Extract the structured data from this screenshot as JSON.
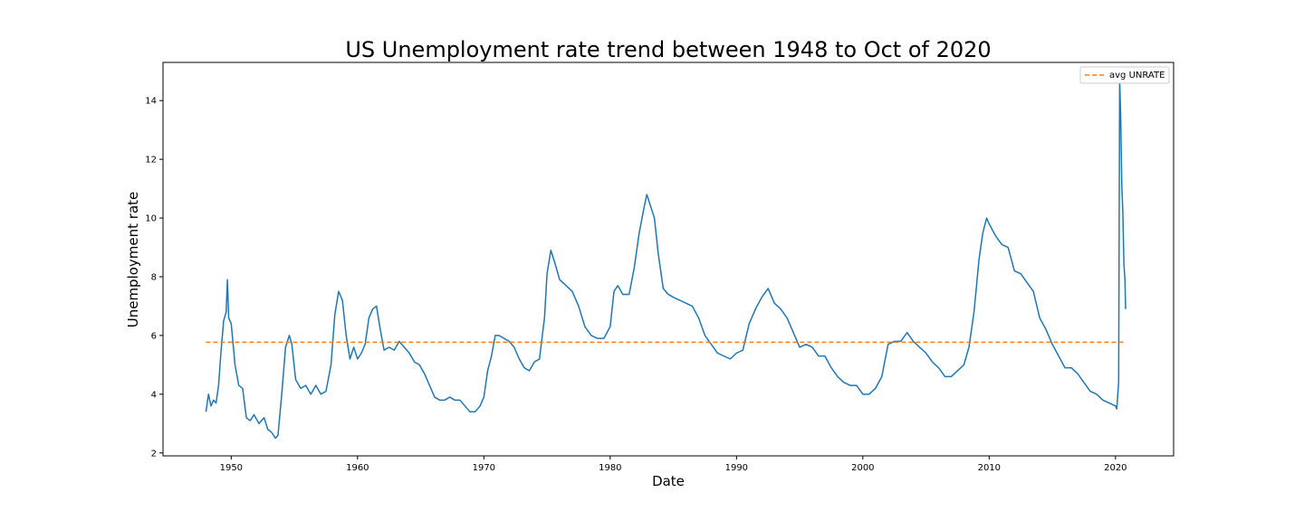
{
  "chart_data": {
    "type": "line",
    "title": "US Unemployment rate trend between 1948 to Oct of 2020",
    "xlabel": "Date",
    "ylabel": "Unemployment rate",
    "xlim": [
      1944.6,
      2024.6
    ],
    "ylim": [
      1.9,
      15.3
    ],
    "xticks": [
      1950,
      1960,
      1970,
      1980,
      1990,
      2000,
      2010,
      2020
    ],
    "yticks": [
      2,
      4,
      6,
      8,
      10,
      12,
      14
    ],
    "grid": false,
    "legend_position": "top-right",
    "series": [
      {
        "name": "UNRATE",
        "color": "#1f77b4",
        "style": "solid",
        "x": [
          1948.0,
          1948.2,
          1948.4,
          1948.6,
          1948.8,
          1949.0,
          1949.2,
          1949.4,
          1949.6,
          1949.7,
          1949.8,
          1950.0,
          1950.3,
          1950.6,
          1950.9,
          1951.2,
          1951.5,
          1951.8,
          1952.2,
          1952.6,
          1952.9,
          1953.2,
          1953.5,
          1953.7,
          1954.0,
          1954.3,
          1954.6,
          1954.8,
          1955.1,
          1955.5,
          1955.9,
          1956.3,
          1956.7,
          1957.1,
          1957.5,
          1957.9,
          1958.2,
          1958.5,
          1958.8,
          1959.1,
          1959.4,
          1959.7,
          1960.0,
          1960.3,
          1960.6,
          1960.9,
          1961.2,
          1961.5,
          1961.8,
          1962.1,
          1962.5,
          1962.9,
          1963.3,
          1963.7,
          1964.1,
          1964.5,
          1964.9,
          1965.3,
          1965.7,
          1966.1,
          1966.5,
          1966.9,
          1967.3,
          1967.7,
          1968.1,
          1968.5,
          1968.9,
          1969.3,
          1969.7,
          1970.0,
          1970.3,
          1970.6,
          1970.9,
          1971.2,
          1971.6,
          1972.0,
          1972.4,
          1972.8,
          1973.2,
          1973.6,
          1974.0,
          1974.4,
          1974.8,
          1975.0,
          1975.3,
          1975.6,
          1976.0,
          1976.5,
          1977.0,
          1977.5,
          1978.0,
          1978.5,
          1979.0,
          1979.5,
          1980.0,
          1980.3,
          1980.6,
          1981.0,
          1981.5,
          1981.9,
          1982.3,
          1982.7,
          1982.9,
          1983.2,
          1983.5,
          1983.8,
          1984.2,
          1984.6,
          1985.0,
          1985.5,
          1986.0,
          1986.5,
          1987.0,
          1987.5,
          1988.0,
          1988.5,
          1989.0,
          1989.5,
          1990.0,
          1990.5,
          1991.0,
          1991.5,
          1992.0,
          1992.5,
          1993.0,
          1993.5,
          1994.0,
          1994.5,
          1995.0,
          1995.5,
          1996.0,
          1996.5,
          1997.0,
          1997.5,
          1998.0,
          1998.5,
          1999.0,
          1999.5,
          2000.0,
          2000.5,
          2001.0,
          2001.5,
          2002.0,
          2002.5,
          2003.0,
          2003.5,
          2004.0,
          2004.5,
          2005.0,
          2005.5,
          2006.0,
          2006.5,
          2007.0,
          2007.5,
          2008.0,
          2008.4,
          2008.8,
          2009.2,
          2009.5,
          2009.8,
          2010.0,
          2010.5,
          2011.0,
          2011.5,
          2012.0,
          2012.5,
          2013.0,
          2013.5,
          2014.0,
          2014.5,
          2015.0,
          2015.5,
          2016.0,
          2016.5,
          2017.0,
          2017.5,
          2018.0,
          2018.5,
          2019.0,
          2019.5,
          2020.0,
          2020.1,
          2020.25,
          2020.33,
          2020.42,
          2020.5,
          2020.58,
          2020.67,
          2020.75,
          2020.8
        ],
        "y": [
          3.4,
          4.0,
          3.6,
          3.8,
          3.7,
          4.3,
          5.5,
          6.5,
          6.8,
          7.9,
          6.6,
          6.4,
          5.0,
          4.3,
          4.2,
          3.2,
          3.1,
          3.3,
          3.0,
          3.2,
          2.8,
          2.7,
          2.5,
          2.6,
          4.0,
          5.6,
          6.0,
          5.7,
          4.5,
          4.2,
          4.3,
          4.0,
          4.3,
          4.0,
          4.1,
          5.0,
          6.7,
          7.5,
          7.2,
          6.0,
          5.2,
          5.6,
          5.2,
          5.4,
          5.7,
          6.6,
          6.9,
          7.0,
          6.2,
          5.5,
          5.6,
          5.5,
          5.8,
          5.6,
          5.4,
          5.1,
          5.0,
          4.7,
          4.3,
          3.9,
          3.8,
          3.8,
          3.9,
          3.8,
          3.8,
          3.6,
          3.4,
          3.4,
          3.6,
          3.9,
          4.8,
          5.3,
          6.0,
          6.0,
          5.9,
          5.8,
          5.6,
          5.2,
          4.9,
          4.8,
          5.1,
          5.2,
          6.6,
          8.1,
          8.9,
          8.5,
          7.9,
          7.7,
          7.5,
          7.0,
          6.3,
          6.0,
          5.9,
          5.9,
          6.3,
          7.5,
          7.7,
          7.4,
          7.4,
          8.3,
          9.5,
          10.4,
          10.8,
          10.4,
          10.0,
          8.8,
          7.6,
          7.4,
          7.3,
          7.2,
          7.1,
          7.0,
          6.6,
          6.0,
          5.7,
          5.4,
          5.3,
          5.2,
          5.4,
          5.5,
          6.4,
          6.9,
          7.3,
          7.6,
          7.1,
          6.9,
          6.6,
          6.1,
          5.6,
          5.7,
          5.6,
          5.3,
          5.3,
          4.9,
          4.6,
          4.4,
          4.3,
          4.3,
          4.0,
          4.0,
          4.2,
          4.6,
          5.7,
          5.8,
          5.8,
          6.1,
          5.8,
          5.6,
          5.4,
          5.1,
          4.9,
          4.6,
          4.6,
          4.8,
          5.0,
          5.6,
          6.8,
          8.6,
          9.5,
          10.0,
          9.8,
          9.4,
          9.1,
          9.0,
          8.2,
          8.1,
          7.8,
          7.5,
          6.6,
          6.2,
          5.7,
          5.3,
          4.9,
          4.9,
          4.7,
          4.4,
          4.1,
          4.0,
          3.8,
          3.7,
          3.6,
          3.5,
          4.4,
          14.7,
          13.3,
          11.1,
          10.2,
          8.4,
          7.9,
          6.9
        ]
      },
      {
        "name": "avg UNRATE",
        "color": "#ff7f0e",
        "style": "dashed",
        "x": [
          1948.0,
          2020.8
        ],
        "y": [
          5.77,
          5.77
        ]
      }
    ],
    "legend": [
      "avg UNRATE"
    ]
  }
}
